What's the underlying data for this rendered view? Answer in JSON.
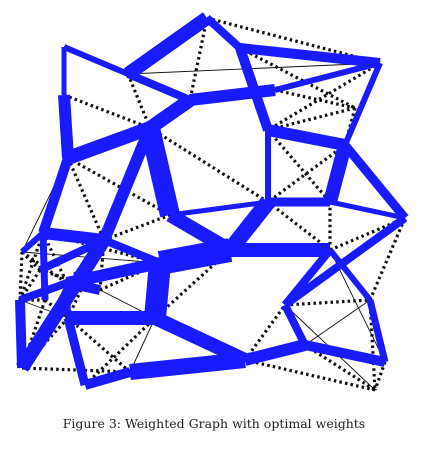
{
  "figure": {
    "caption": "Figure 3: Weighted Graph with optimal weights"
  },
  "colors": {
    "weighted_edge": "#1a1aff",
    "dotted_edge": "#111111",
    "thin_edge": "#111111",
    "background": "#ffffff"
  }
}
